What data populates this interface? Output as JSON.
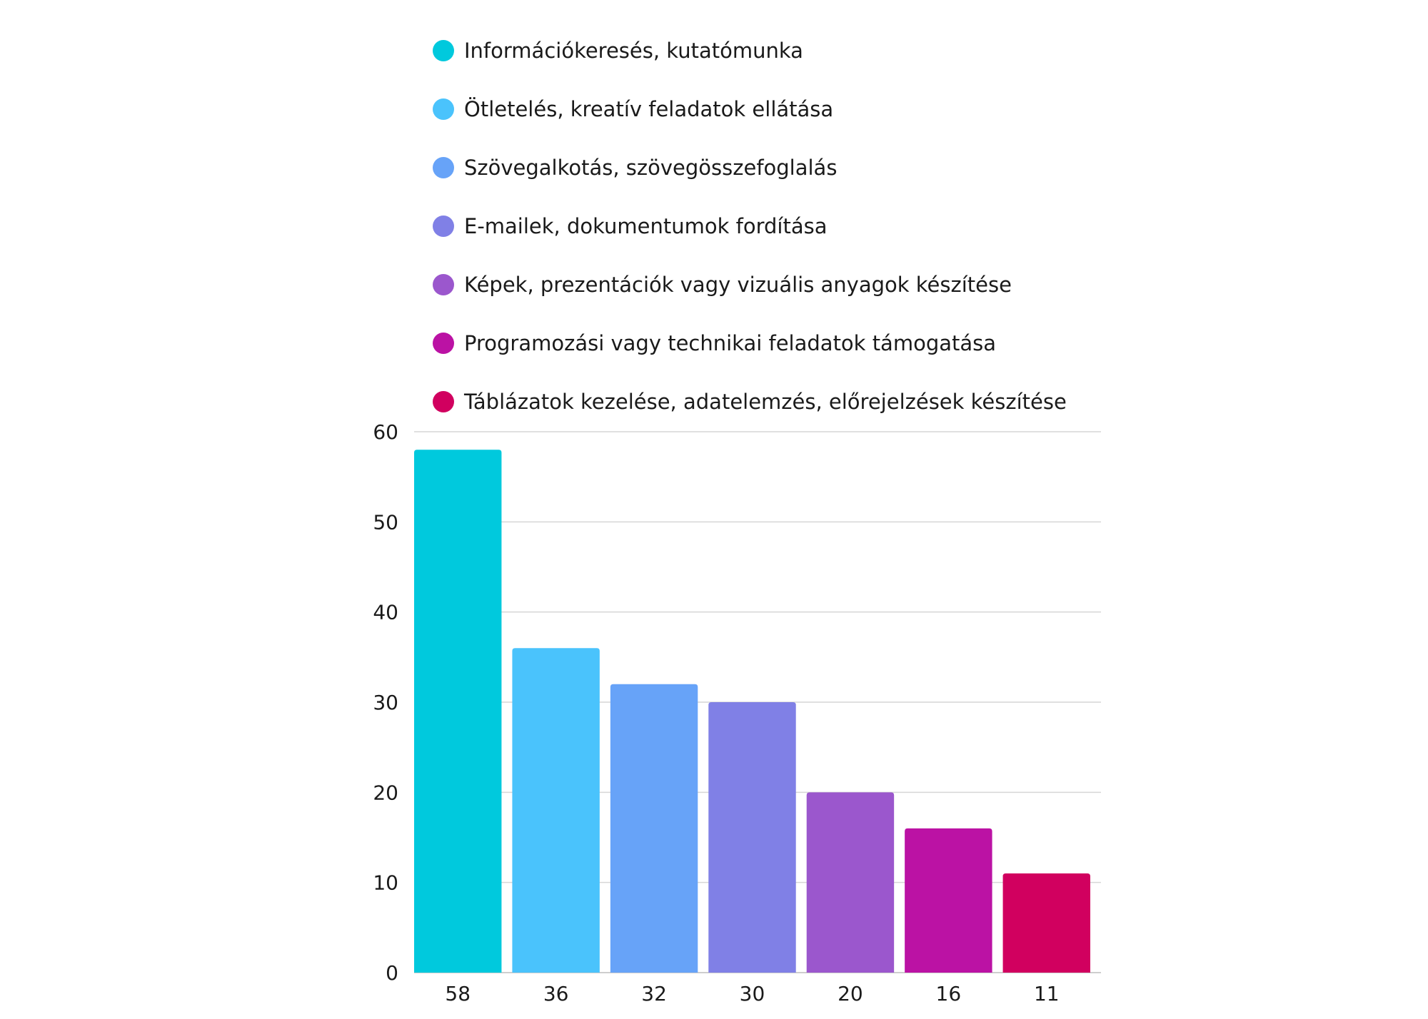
{
  "chart_data": {
    "type": "bar",
    "categories": [
      "58",
      "36",
      "32",
      "30",
      "20",
      "16",
      "11"
    ],
    "series": [
      {
        "name": "Információkeresés, kutatómunka",
        "value": 58,
        "color": "#00c9dd"
      },
      {
        "name": "Ötletelés, kreatív feladatok ellátása",
        "value": 36,
        "color": "#4ac3fc"
      },
      {
        "name": "Szövegalkotás, szövegösszefoglalás",
        "value": 32,
        "color": "#67a3f8"
      },
      {
        "name": "E-mailek, dokumentumok fordítása",
        "value": 30,
        "color": "#8080e6"
      },
      {
        "name": "Képek, prezentációk vagy vizuális anyagok készítése",
        "value": 20,
        "color": "#9b57cd"
      },
      {
        "name": "Programozási vagy technikai feladatok támogatása",
        "value": 16,
        "color": "#bb12a4"
      },
      {
        "name": "Táblázatok kezelése, adatelemzés, előrejelzések készítése",
        "value": 11,
        "color": "#d1005f"
      }
    ],
    "values": [
      58,
      36,
      32,
      30,
      20,
      16,
      11
    ],
    "ylim": [
      0,
      60
    ],
    "yticks": [
      "0",
      "10",
      "20",
      "30",
      "40",
      "50",
      "60"
    ],
    "grid": true,
    "legend_position": "top"
  }
}
